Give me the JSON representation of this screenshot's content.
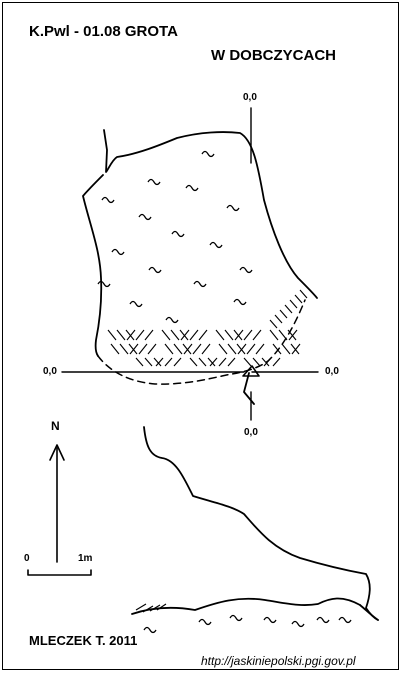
{
  "title": {
    "line1": "K.Pwl - 01.08  GROTA",
    "line2": "W DOBCZYCACH"
  },
  "elevations": {
    "top": "0,0",
    "left": "0,0",
    "right": "0,0",
    "bottom": "0,0"
  },
  "north_arrow": {
    "label": "N"
  },
  "scale_bar": {
    "start_label": "0",
    "end_label": "1m"
  },
  "author": "MLECZEK T. 2011",
  "source_url": "http://jaskiniepolski.pgi.gov.pl",
  "colors": {
    "ink": "#000000",
    "background": "#ffffff"
  }
}
